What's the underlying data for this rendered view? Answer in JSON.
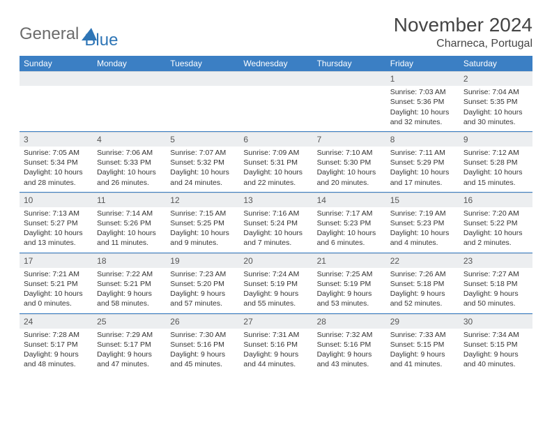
{
  "logo": {
    "text1": "General",
    "text2": "Blue"
  },
  "title": "November 2024",
  "location": "Charneca, Portugal",
  "colors": {
    "header_bg": "#3b7fc4",
    "header_fg": "#ffffff",
    "daynum_bg": "#eceef0",
    "separator": "#3b7fc4",
    "logo_gray": "#6b6b6b",
    "logo_blue": "#2e75b6"
  },
  "fonts": {
    "title_pt": 28,
    "location_pt": 16,
    "header_pt": 12,
    "body_pt": 10.5
  },
  "days": [
    "Sunday",
    "Monday",
    "Tuesday",
    "Wednesday",
    "Thursday",
    "Friday",
    "Saturday"
  ],
  "weeks": [
    [
      null,
      null,
      null,
      null,
      null,
      {
        "n": "1",
        "sr": "Sunrise: 7:03 AM",
        "ss": "Sunset: 5:36 PM",
        "dl": "Daylight: 10 hours and 32 minutes."
      },
      {
        "n": "2",
        "sr": "Sunrise: 7:04 AM",
        "ss": "Sunset: 5:35 PM",
        "dl": "Daylight: 10 hours and 30 minutes."
      }
    ],
    [
      {
        "n": "3",
        "sr": "Sunrise: 7:05 AM",
        "ss": "Sunset: 5:34 PM",
        "dl": "Daylight: 10 hours and 28 minutes."
      },
      {
        "n": "4",
        "sr": "Sunrise: 7:06 AM",
        "ss": "Sunset: 5:33 PM",
        "dl": "Daylight: 10 hours and 26 minutes."
      },
      {
        "n": "5",
        "sr": "Sunrise: 7:07 AM",
        "ss": "Sunset: 5:32 PM",
        "dl": "Daylight: 10 hours and 24 minutes."
      },
      {
        "n": "6",
        "sr": "Sunrise: 7:09 AM",
        "ss": "Sunset: 5:31 PM",
        "dl": "Daylight: 10 hours and 22 minutes."
      },
      {
        "n": "7",
        "sr": "Sunrise: 7:10 AM",
        "ss": "Sunset: 5:30 PM",
        "dl": "Daylight: 10 hours and 20 minutes."
      },
      {
        "n": "8",
        "sr": "Sunrise: 7:11 AM",
        "ss": "Sunset: 5:29 PM",
        "dl": "Daylight: 10 hours and 17 minutes."
      },
      {
        "n": "9",
        "sr": "Sunrise: 7:12 AM",
        "ss": "Sunset: 5:28 PM",
        "dl": "Daylight: 10 hours and 15 minutes."
      }
    ],
    [
      {
        "n": "10",
        "sr": "Sunrise: 7:13 AM",
        "ss": "Sunset: 5:27 PM",
        "dl": "Daylight: 10 hours and 13 minutes."
      },
      {
        "n": "11",
        "sr": "Sunrise: 7:14 AM",
        "ss": "Sunset: 5:26 PM",
        "dl": "Daylight: 10 hours and 11 minutes."
      },
      {
        "n": "12",
        "sr": "Sunrise: 7:15 AM",
        "ss": "Sunset: 5:25 PM",
        "dl": "Daylight: 10 hours and 9 minutes."
      },
      {
        "n": "13",
        "sr": "Sunrise: 7:16 AM",
        "ss": "Sunset: 5:24 PM",
        "dl": "Daylight: 10 hours and 7 minutes."
      },
      {
        "n": "14",
        "sr": "Sunrise: 7:17 AM",
        "ss": "Sunset: 5:23 PM",
        "dl": "Daylight: 10 hours and 6 minutes."
      },
      {
        "n": "15",
        "sr": "Sunrise: 7:19 AM",
        "ss": "Sunset: 5:23 PM",
        "dl": "Daylight: 10 hours and 4 minutes."
      },
      {
        "n": "16",
        "sr": "Sunrise: 7:20 AM",
        "ss": "Sunset: 5:22 PM",
        "dl": "Daylight: 10 hours and 2 minutes."
      }
    ],
    [
      {
        "n": "17",
        "sr": "Sunrise: 7:21 AM",
        "ss": "Sunset: 5:21 PM",
        "dl": "Daylight: 10 hours and 0 minutes."
      },
      {
        "n": "18",
        "sr": "Sunrise: 7:22 AM",
        "ss": "Sunset: 5:21 PM",
        "dl": "Daylight: 9 hours and 58 minutes."
      },
      {
        "n": "19",
        "sr": "Sunrise: 7:23 AM",
        "ss": "Sunset: 5:20 PM",
        "dl": "Daylight: 9 hours and 57 minutes."
      },
      {
        "n": "20",
        "sr": "Sunrise: 7:24 AM",
        "ss": "Sunset: 5:19 PM",
        "dl": "Daylight: 9 hours and 55 minutes."
      },
      {
        "n": "21",
        "sr": "Sunrise: 7:25 AM",
        "ss": "Sunset: 5:19 PM",
        "dl": "Daylight: 9 hours and 53 minutes."
      },
      {
        "n": "22",
        "sr": "Sunrise: 7:26 AM",
        "ss": "Sunset: 5:18 PM",
        "dl": "Daylight: 9 hours and 52 minutes."
      },
      {
        "n": "23",
        "sr": "Sunrise: 7:27 AM",
        "ss": "Sunset: 5:18 PM",
        "dl": "Daylight: 9 hours and 50 minutes."
      }
    ],
    [
      {
        "n": "24",
        "sr": "Sunrise: 7:28 AM",
        "ss": "Sunset: 5:17 PM",
        "dl": "Daylight: 9 hours and 48 minutes."
      },
      {
        "n": "25",
        "sr": "Sunrise: 7:29 AM",
        "ss": "Sunset: 5:17 PM",
        "dl": "Daylight: 9 hours and 47 minutes."
      },
      {
        "n": "26",
        "sr": "Sunrise: 7:30 AM",
        "ss": "Sunset: 5:16 PM",
        "dl": "Daylight: 9 hours and 45 minutes."
      },
      {
        "n": "27",
        "sr": "Sunrise: 7:31 AM",
        "ss": "Sunset: 5:16 PM",
        "dl": "Daylight: 9 hours and 44 minutes."
      },
      {
        "n": "28",
        "sr": "Sunrise: 7:32 AM",
        "ss": "Sunset: 5:16 PM",
        "dl": "Daylight: 9 hours and 43 minutes."
      },
      {
        "n": "29",
        "sr": "Sunrise: 7:33 AM",
        "ss": "Sunset: 5:15 PM",
        "dl": "Daylight: 9 hours and 41 minutes."
      },
      {
        "n": "30",
        "sr": "Sunrise: 7:34 AM",
        "ss": "Sunset: 5:15 PM",
        "dl": "Daylight: 9 hours and 40 minutes."
      }
    ]
  ]
}
